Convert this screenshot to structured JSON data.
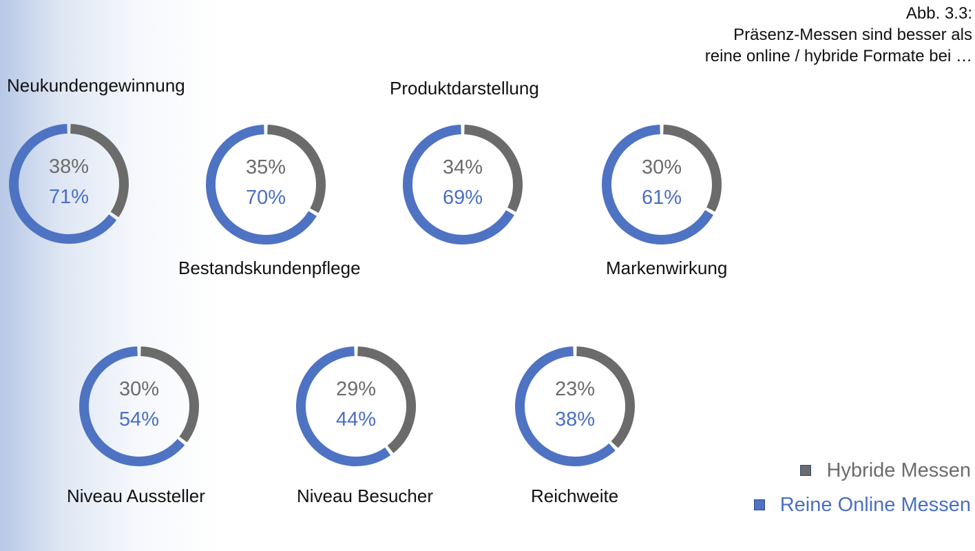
{
  "title": {
    "line1": "Abb. 3.3:",
    "line2": "Präsenz-Messen sind besser als",
    "line3": "reine online / hybride Formate bei …"
  },
  "colors": {
    "hybrid": "#6b6b6b",
    "online": "#4f73c3",
    "hybrid_text": "#6b6b6b",
    "online_text": "#4a6fc2"
  },
  "legend": {
    "hybrid": "Hybride Messen",
    "online": "Reine Online Messen"
  },
  "chart_data": {
    "type": "donut",
    "series_names": [
      "Hybride Messen",
      "Reine Online Messen"
    ],
    "categories": [
      {
        "label": "Neukundengewinnung",
        "hybrid": 38,
        "online": 71,
        "hybrid_label": "38%",
        "online_label": "71%"
      },
      {
        "label": "Bestandskundenpflege",
        "hybrid": 35,
        "online": 70,
        "hybrid_label": "35%",
        "online_label": "70%"
      },
      {
        "label": "Produktdarstellung",
        "hybrid": 34,
        "online": 69,
        "hybrid_label": "34%",
        "online_label": "69%"
      },
      {
        "label": "Markenwirkung",
        "hybrid": 30,
        "online": 61,
        "hybrid_label": "30%",
        "online_label": "61%"
      },
      {
        "label": "Niveau Aussteller",
        "hybrid": 30,
        "online": 54,
        "hybrid_label": "30%",
        "online_label": "54%"
      },
      {
        "label": "Niveau Besucher",
        "hybrid": 29,
        "online": 44,
        "hybrid_label": "29%",
        "online_label": "44%"
      },
      {
        "label": "Reichweite",
        "hybrid": 23,
        "online": 38,
        "hybrid_label": "23%",
        "online_label": "38%"
      }
    ]
  }
}
